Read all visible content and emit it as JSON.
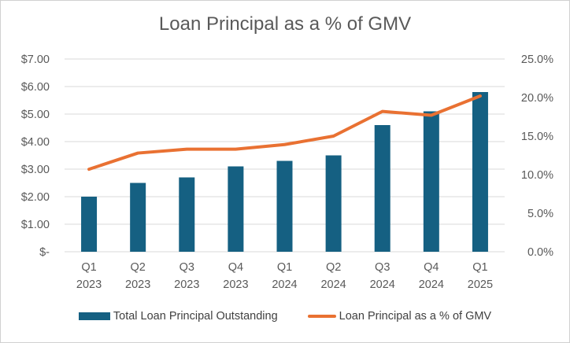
{
  "chart_data": {
    "type": "bar",
    "title": "Loan Principal as a % of GMV",
    "categories": [
      "Q1\n2023",
      "Q2\n2023",
      "Q3\n2023",
      "Q4\n2023",
      "Q1\n2024",
      "Q2\n2024",
      "Q3\n2024",
      "Q4\n2024",
      "Q1\n2025"
    ],
    "category_lines": [
      [
        "Q1",
        "2023"
      ],
      [
        "Q2",
        "2023"
      ],
      [
        "Q3",
        "2023"
      ],
      [
        "Q4",
        "2023"
      ],
      [
        "Q1",
        "2024"
      ],
      [
        "Q2",
        "2024"
      ],
      [
        "Q3",
        "2024"
      ],
      [
        "Q4",
        "2024"
      ],
      [
        "Q1",
        "2025"
      ]
    ],
    "series": [
      {
        "name": "Total Loan Principal Outstanding",
        "type": "bar",
        "axis": "left",
        "color": "#156082",
        "values": [
          2.0,
          2.5,
          2.7,
          3.1,
          3.3,
          3.5,
          4.6,
          5.1,
          5.8
        ]
      },
      {
        "name": "Loan Principal as a % of GMV",
        "type": "line",
        "axis": "right",
        "color": "#E97132",
        "values": [
          10.7,
          12.8,
          13.3,
          13.3,
          13.9,
          15.0,
          18.2,
          17.7,
          20.2
        ]
      }
    ],
    "y_left": {
      "lim": [
        0,
        7
      ],
      "ticks": [
        0,
        1,
        2,
        3,
        4,
        5,
        6,
        7
      ],
      "tick_labels": [
        "$-",
        "$1.00",
        "$2.00",
        "$3.00",
        "$4.00",
        "$5.00",
        "$6.00",
        "$7.00"
      ]
    },
    "y_right": {
      "lim": [
        0,
        25
      ],
      "ticks": [
        0,
        5,
        10,
        15,
        20,
        25
      ],
      "tick_labels": [
        "0.0%",
        "5.0%",
        "10.0%",
        "15.0%",
        "20.0%",
        "25.0%"
      ]
    },
    "grid": "horizontal",
    "legend_position": "bottom"
  }
}
